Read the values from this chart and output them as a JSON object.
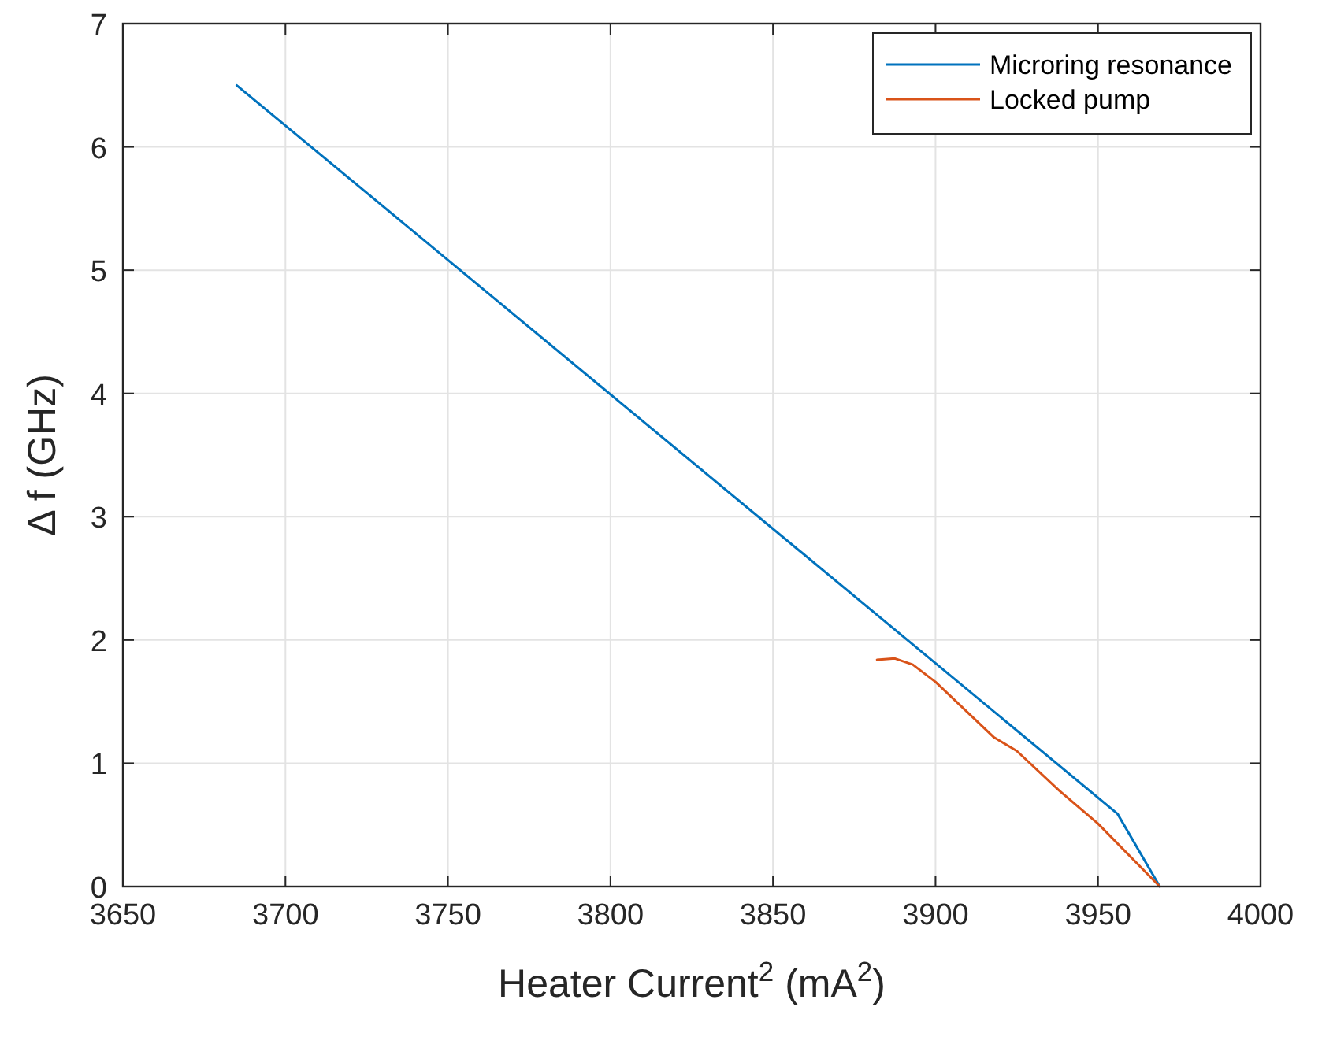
{
  "chart_data": {
    "type": "line",
    "xlabel": "Heater Current$^{2}$ (mA$^{2}$)",
    "ylabel": "Δ f (GHz)",
    "xlim": [
      3650,
      4000
    ],
    "xticks": [
      3650,
      3700,
      3750,
      3800,
      3850,
      3900,
      3950,
      4000
    ],
    "ylim": [
      0,
      7
    ],
    "yticks": [
      0,
      1,
      2,
      3,
      4,
      5,
      6,
      7
    ],
    "grid": true,
    "legend": "top right",
    "series": [
      {
        "name": "Microring resonance",
        "color": "#0072bd",
        "x": [
          3685,
          3956,
          3969
        ],
        "values": [
          6.5,
          0.59,
          0
        ]
      },
      {
        "name": "Locked pump",
        "color": "#d95319",
        "x": [
          3882,
          3887.5,
          3893,
          3900,
          3918,
          3925,
          3938,
          3950,
          3969
        ],
        "values": [
          1.84,
          1.85,
          1.8,
          1.66,
          1.21,
          1.1,
          0.78,
          0.51,
          0
        ]
      }
    ]
  }
}
